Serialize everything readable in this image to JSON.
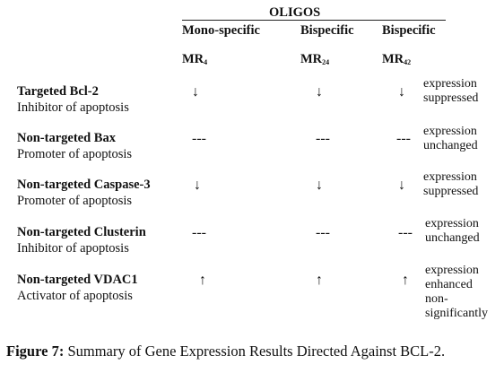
{
  "table": {
    "group_header": "OLIGOS",
    "columns": [
      {
        "type": "Mono-specific",
        "code": "MR",
        "sub": "4"
      },
      {
        "type": "Bispecific",
        "code": "MR",
        "sub": "24"
      },
      {
        "type": "Bispecific",
        "code": "MR",
        "sub": "42"
      }
    ],
    "rows": [
      {
        "target": "Targeted Bcl-2",
        "role": "Inhibitor of apoptosis",
        "symbols": [
          "↓",
          "↓",
          "↓"
        ],
        "result": "expression suppressed"
      },
      {
        "target": "Non-targeted Bax",
        "role": "Promoter of apoptosis",
        "symbols": [
          "---",
          "---",
          "---"
        ],
        "result": "expression unchanged"
      },
      {
        "target": "Non-targeted Caspase-3",
        "role": "Promoter of apoptosis",
        "symbols": [
          "↓",
          "↓",
          "↓"
        ],
        "result": "expression suppressed"
      },
      {
        "target": "Non-targeted Clusterin",
        "role": "Inhibitor of apoptosis",
        "symbols": [
          "---",
          "---",
          "---"
        ],
        "result": "expression unchanged"
      },
      {
        "target": "Non-targeted VDAC1",
        "role": "Activator of apoptosis",
        "symbols": [
          "↑",
          "↑",
          "↑"
        ],
        "result": "expression enhanced non-significantly"
      }
    ]
  },
  "caption": {
    "label": "Figure 7:",
    "text": " Summary of Gene Expression Results Directed Against BCL-2."
  }
}
